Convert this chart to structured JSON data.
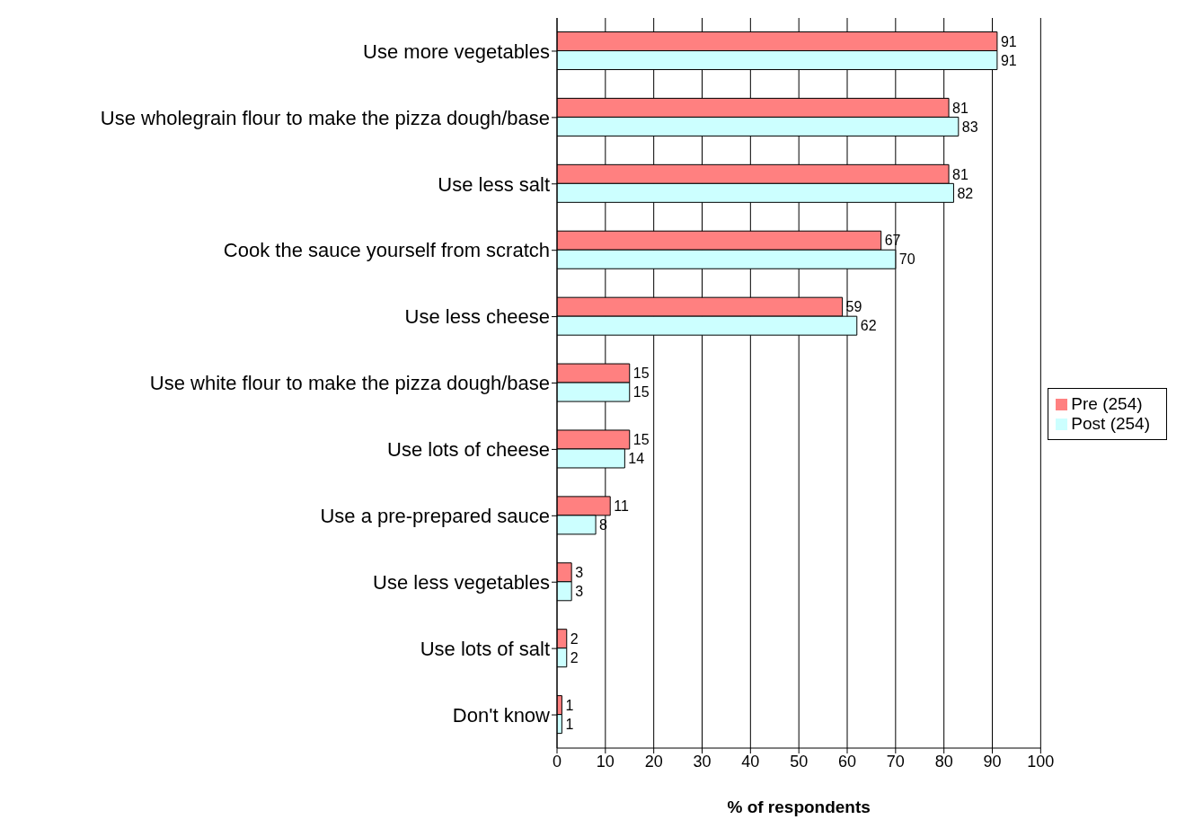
{
  "chart_data": {
    "type": "bar",
    "orientation": "horizontal",
    "xlabel": "% of respondents",
    "categories": [
      "Use more vegetables",
      "Use wholegrain flour to make the pizza dough/base",
      "Use less salt",
      "Cook the sauce yourself from scratch",
      "Use less cheese",
      "Use white flour to make the pizza dough/base",
      "Use lots of cheese",
      "Use a pre-prepared sauce",
      "Use less vegetables",
      "Use lots of salt",
      "Don't know"
    ],
    "series": [
      {
        "name": "Pre (254)",
        "color": "#ff8080",
        "values": [
          91,
          81,
          81,
          67,
          59,
          15,
          15,
          11,
          3,
          2,
          1
        ]
      },
      {
        "name": "Post (254)",
        "color": "#ccffff",
        "values": [
          91,
          83,
          82,
          70,
          62,
          15,
          14,
          8,
          3,
          2,
          1
        ]
      }
    ],
    "xlim": [
      0,
      100
    ],
    "xticks": [
      0,
      10,
      20,
      30,
      40,
      50,
      60,
      70,
      80,
      90,
      100
    ],
    "grid": "x",
    "legend": "right",
    "data_labels": true
  }
}
